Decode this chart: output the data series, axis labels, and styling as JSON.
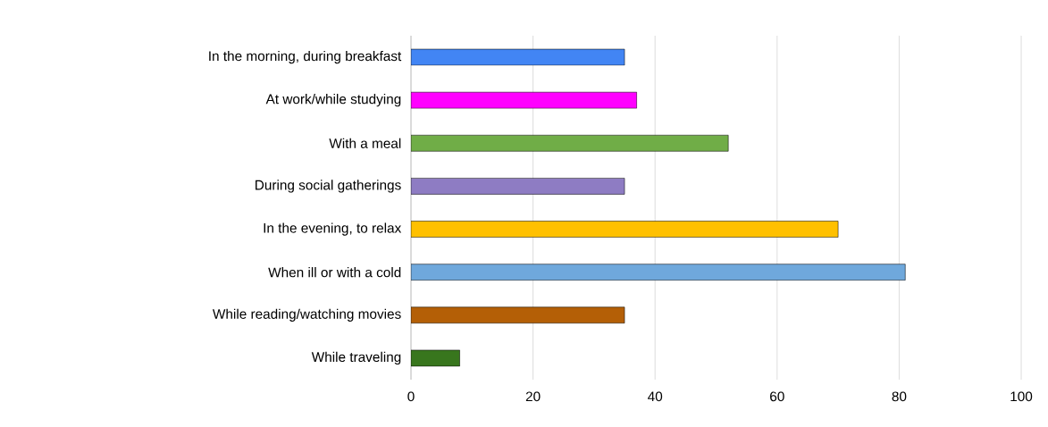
{
  "chart_data": {
    "type": "bar",
    "orientation": "horizontal",
    "categories": [
      "In the morning, during breakfast",
      "At work/while studying",
      "With a meal",
      "During social gatherings",
      "In the evening, to relax",
      "When ill or with a cold",
      "While reading/watching movies",
      "While traveling"
    ],
    "values": [
      35,
      37,
      52,
      35,
      70,
      81,
      35,
      8
    ],
    "colors": [
      "#4285f4",
      "#ff00ff",
      "#70ad47",
      "#8e7cc3",
      "#ffc000",
      "#6fa8dc",
      "#b45f06",
      "#38761d"
    ],
    "xlim": [
      0,
      100
    ],
    "xticks": [
      0,
      20,
      40,
      60,
      80,
      100
    ],
    "grid": "x"
  }
}
